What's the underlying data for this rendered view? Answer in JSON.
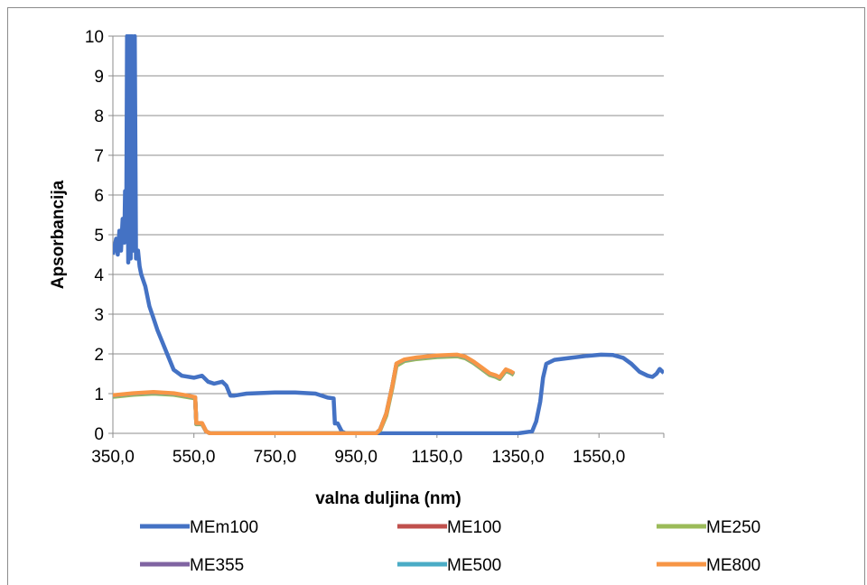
{
  "chart_data": {
    "type": "line",
    "title": "",
    "xlabel": "valna duljina (nm)",
    "ylabel": "Apsorbancija",
    "xlim": [
      350,
      1710
    ],
    "ylim": [
      0,
      10
    ],
    "x_ticks": [
      "350,0",
      "550,0",
      "750,0",
      "950,0",
      "1150,0",
      "1350,0",
      "1550,0"
    ],
    "x_tick_values": [
      350,
      550,
      750,
      950,
      1150,
      1350,
      1550
    ],
    "y_ticks": [
      "0",
      "1",
      "2",
      "3",
      "4",
      "5",
      "6",
      "7",
      "8",
      "9",
      "10"
    ],
    "y_tick_values": [
      0,
      1,
      2,
      3,
      4,
      5,
      6,
      7,
      8,
      9,
      10
    ],
    "grid": "horizontal",
    "legend_position": "bottom",
    "series": [
      {
        "name": "MEm100",
        "color": "#4472C4",
        "points": [
          [
            350,
            4.5
          ],
          [
            358,
            4.9
          ],
          [
            362,
            4.5
          ],
          [
            366,
            5.1
          ],
          [
            370,
            4.6
          ],
          [
            374,
            5.4
          ],
          [
            378,
            4.8
          ],
          [
            380,
            6.1
          ],
          [
            383,
            5.2
          ],
          [
            385,
            10
          ],
          [
            388,
            4.3
          ],
          [
            391,
            10
          ],
          [
            394,
            4.4
          ],
          [
            397,
            10
          ],
          [
            400,
            4.6
          ],
          [
            404,
            10
          ],
          [
            407,
            4.4
          ],
          [
            412,
            4.6
          ],
          [
            416,
            4.2
          ],
          [
            420,
            4.0
          ],
          [
            430,
            3.7
          ],
          [
            440,
            3.2
          ],
          [
            450,
            2.9
          ],
          [
            460,
            2.6
          ],
          [
            480,
            2.1
          ],
          [
            500,
            1.6
          ],
          [
            520,
            1.45
          ],
          [
            550,
            1.4
          ],
          [
            570,
            1.45
          ],
          [
            585,
            1.3
          ],
          [
            600,
            1.25
          ],
          [
            620,
            1.3
          ],
          [
            630,
            1.2
          ],
          [
            640,
            0.95
          ],
          [
            650,
            0.95
          ],
          [
            680,
            1.0
          ],
          [
            750,
            1.03
          ],
          [
            800,
            1.03
          ],
          [
            850,
            1.0
          ],
          [
            880,
            0.9
          ],
          [
            895,
            0.88
          ],
          [
            898,
            0.25
          ],
          [
            905,
            0.25
          ],
          [
            915,
            0.05
          ],
          [
            925,
            0
          ],
          [
            1000,
            0
          ],
          [
            1100,
            0
          ],
          [
            1200,
            0
          ],
          [
            1300,
            0
          ],
          [
            1350,
            0
          ],
          [
            1385,
            0.05
          ],
          [
            1395,
            0.3
          ],
          [
            1405,
            0.8
          ],
          [
            1412,
            1.4
          ],
          [
            1420,
            1.75
          ],
          [
            1440,
            1.85
          ],
          [
            1480,
            1.9
          ],
          [
            1520,
            1.95
          ],
          [
            1555,
            1.98
          ],
          [
            1585,
            1.97
          ],
          [
            1610,
            1.9
          ],
          [
            1630,
            1.75
          ],
          [
            1650,
            1.55
          ],
          [
            1670,
            1.45
          ],
          [
            1682,
            1.42
          ],
          [
            1692,
            1.5
          ],
          [
            1700,
            1.62
          ],
          [
            1710,
            1.52
          ]
        ]
      },
      {
        "name": "ME100",
        "color": "#C0504D",
        "points": [
          [
            350,
            0.95
          ],
          [
            400,
            1.0
          ],
          [
            450,
            1.03
          ],
          [
            500,
            1.0
          ],
          [
            530,
            0.95
          ],
          [
            553,
            0.9
          ],
          [
            556,
            0.25
          ],
          [
            570,
            0.25
          ],
          [
            580,
            0.05
          ],
          [
            590,
            0
          ],
          [
            700,
            0
          ],
          [
            800,
            0
          ],
          [
            900,
            0
          ],
          [
            1000,
            0
          ],
          [
            1010,
            0.1
          ],
          [
            1025,
            0.5
          ],
          [
            1040,
            1.2
          ],
          [
            1050,
            1.75
          ],
          [
            1070,
            1.85
          ],
          [
            1100,
            1.9
          ],
          [
            1150,
            1.95
          ],
          [
            1200,
            1.97
          ],
          [
            1220,
            1.92
          ],
          [
            1240,
            1.8
          ],
          [
            1260,
            1.65
          ],
          [
            1280,
            1.5
          ],
          [
            1295,
            1.45
          ],
          [
            1305,
            1.4
          ],
          [
            1320,
            1.6
          ],
          [
            1332,
            1.55
          ],
          [
            1340,
            1.5
          ]
        ]
      },
      {
        "name": "ME250",
        "color": "#9BBB59",
        "points": [
          [
            350,
            0.92
          ],
          [
            400,
            0.97
          ],
          [
            450,
            1.0
          ],
          [
            500,
            0.97
          ],
          [
            530,
            0.92
          ],
          [
            553,
            0.88
          ],
          [
            556,
            0.23
          ],
          [
            570,
            0.23
          ],
          [
            580,
            0.05
          ],
          [
            590,
            0
          ],
          [
            700,
            0
          ],
          [
            800,
            0
          ],
          [
            900,
            0
          ],
          [
            1000,
            0
          ],
          [
            1010,
            0.08
          ],
          [
            1025,
            0.45
          ],
          [
            1040,
            1.15
          ],
          [
            1050,
            1.7
          ],
          [
            1070,
            1.82
          ],
          [
            1100,
            1.87
          ],
          [
            1150,
            1.92
          ],
          [
            1200,
            1.94
          ],
          [
            1220,
            1.89
          ],
          [
            1240,
            1.77
          ],
          [
            1260,
            1.62
          ],
          [
            1280,
            1.47
          ],
          [
            1295,
            1.42
          ],
          [
            1305,
            1.37
          ],
          [
            1320,
            1.57
          ],
          [
            1332,
            1.52
          ],
          [
            1340,
            1.47
          ]
        ]
      },
      {
        "name": "ME355",
        "color": "#8064A2",
        "points": [
          [
            350,
            0.95
          ],
          [
            400,
            1.0
          ],
          [
            450,
            1.03
          ],
          [
            500,
            1.0
          ],
          [
            530,
            0.95
          ],
          [
            553,
            0.9
          ],
          [
            556,
            0.25
          ],
          [
            570,
            0.25
          ],
          [
            580,
            0.05
          ],
          [
            590,
            0
          ],
          [
            700,
            0
          ],
          [
            800,
            0
          ],
          [
            900,
            0
          ],
          [
            1000,
            0
          ],
          [
            1010,
            0.1
          ],
          [
            1025,
            0.5
          ],
          [
            1040,
            1.2
          ],
          [
            1050,
            1.75
          ],
          [
            1070,
            1.85
          ],
          [
            1100,
            1.9
          ],
          [
            1150,
            1.95
          ],
          [
            1200,
            1.97
          ],
          [
            1220,
            1.92
          ],
          [
            1240,
            1.8
          ],
          [
            1260,
            1.65
          ],
          [
            1280,
            1.5
          ],
          [
            1295,
            1.45
          ],
          [
            1305,
            1.4
          ],
          [
            1320,
            1.6
          ],
          [
            1332,
            1.55
          ],
          [
            1340,
            1.5
          ]
        ]
      },
      {
        "name": "ME500",
        "color": "#4BACC6",
        "points": [
          [
            350,
            0.95
          ],
          [
            400,
            1.0
          ],
          [
            450,
            1.03
          ],
          [
            500,
            1.0
          ],
          [
            530,
            0.95
          ],
          [
            553,
            0.9
          ],
          [
            556,
            0.25
          ],
          [
            570,
            0.25
          ],
          [
            580,
            0.05
          ],
          [
            590,
            0
          ],
          [
            700,
            0
          ],
          [
            800,
            0
          ],
          [
            900,
            0
          ],
          [
            1000,
            0
          ],
          [
            1010,
            0.1
          ],
          [
            1025,
            0.5
          ],
          [
            1040,
            1.2
          ],
          [
            1050,
            1.75
          ],
          [
            1070,
            1.85
          ],
          [
            1100,
            1.9
          ],
          [
            1150,
            1.95
          ],
          [
            1200,
            1.97
          ],
          [
            1220,
            1.92
          ],
          [
            1240,
            1.8
          ],
          [
            1260,
            1.65
          ],
          [
            1280,
            1.5
          ],
          [
            1295,
            1.45
          ],
          [
            1305,
            1.4
          ],
          [
            1320,
            1.6
          ],
          [
            1332,
            1.55
          ],
          [
            1340,
            1.5
          ]
        ]
      },
      {
        "name": "ME800",
        "color": "#F79646",
        "points": [
          [
            350,
            0.96
          ],
          [
            400,
            1.01
          ],
          [
            450,
            1.04
          ],
          [
            500,
            1.01
          ],
          [
            530,
            0.96
          ],
          [
            553,
            0.91
          ],
          [
            556,
            0.26
          ],
          [
            570,
            0.26
          ],
          [
            580,
            0.05
          ],
          [
            590,
            0
          ],
          [
            700,
            0
          ],
          [
            800,
            0
          ],
          [
            900,
            0
          ],
          [
            1000,
            0
          ],
          [
            1010,
            0.1
          ],
          [
            1025,
            0.5
          ],
          [
            1040,
            1.2
          ],
          [
            1050,
            1.76
          ],
          [
            1070,
            1.86
          ],
          [
            1100,
            1.91
          ],
          [
            1150,
            1.96
          ],
          [
            1200,
            1.98
          ],
          [
            1220,
            1.93
          ],
          [
            1240,
            1.81
          ],
          [
            1260,
            1.66
          ],
          [
            1280,
            1.51
          ],
          [
            1295,
            1.46
          ],
          [
            1305,
            1.41
          ],
          [
            1320,
            1.61
          ],
          [
            1332,
            1.56
          ],
          [
            1340,
            1.51
          ]
        ]
      }
    ]
  }
}
